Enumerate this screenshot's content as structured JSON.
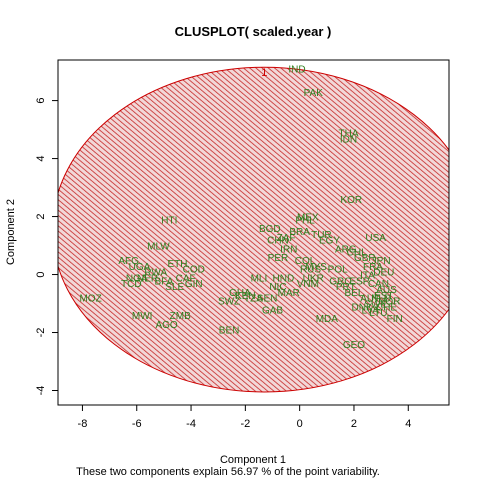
{
  "chart_data": {
    "type": "scatter",
    "title": "CLUSPLOT( scaled.year )",
    "xlabel": "Component 1",
    "ylabel": "Component 2",
    "subtitle": "These two components explain 56.97 % of the point variability.",
    "xlim": [
      -8.9,
      5.5
    ],
    "ylim": [
      -4.5,
      7.4
    ],
    "xticks": [
      -8,
      -6,
      -4,
      -2,
      0,
      2,
      4
    ],
    "yticks": [
      -4,
      -2,
      0,
      2,
      4,
      6
    ],
    "cluster_label": "1",
    "cluster_ellipse": {
      "center": [
        -1.3,
        1.55
      ],
      "semi_axis_x": 7.8,
      "semi_axis_y": 5.6,
      "fill": "hatched",
      "color": "#cc0000"
    },
    "point_color": "#2e7d1e",
    "points": [
      {
        "label": "IND",
        "x": -0.1,
        "y": 7.1
      },
      {
        "label": "PAK",
        "x": 0.5,
        "y": 6.3
      },
      {
        "label": "THA",
        "x": 1.8,
        "y": 4.9
      },
      {
        "label": "IDN",
        "x": 1.8,
        "y": 4.7
      },
      {
        "label": "KOR",
        "x": 1.9,
        "y": 2.6
      },
      {
        "label": "PHL",
        "x": 0.2,
        "y": 1.9
      },
      {
        "label": "MEX",
        "x": 0.3,
        "y": 2.0
      },
      {
        "label": "BGD",
        "x": -1.1,
        "y": 1.6
      },
      {
        "label": "BRA",
        "x": 0.0,
        "y": 1.5
      },
      {
        "label": "TUR",
        "x": 0.8,
        "y": 1.4
      },
      {
        "label": "EGY",
        "x": 1.1,
        "y": 1.2
      },
      {
        "label": "ZAF",
        "x": -0.5,
        "y": 1.3
      },
      {
        "label": "CHN",
        "x": -0.8,
        "y": 1.2
      },
      {
        "label": "IRN",
        "x": -0.4,
        "y": 0.9
      },
      {
        "label": "PER",
        "x": -0.8,
        "y": 0.6
      },
      {
        "label": "COL",
        "x": 0.2,
        "y": 0.5
      },
      {
        "label": "ARG",
        "x": 1.7,
        "y": 0.9
      },
      {
        "label": "CHL",
        "x": 2.1,
        "y": 0.8
      },
      {
        "label": "USA",
        "x": 2.8,
        "y": 1.3
      },
      {
        "label": "JPN",
        "x": 3.0,
        "y": 0.5
      },
      {
        "label": "GBR",
        "x": 2.4,
        "y": 0.6
      },
      {
        "label": "FRA",
        "x": 2.7,
        "y": 0.3
      },
      {
        "label": "DEU",
        "x": 3.1,
        "y": 0.1
      },
      {
        "label": "ITA",
        "x": 2.5,
        "y": 0.0
      },
      {
        "label": "ESP",
        "x": 2.2,
        "y": -0.2
      },
      {
        "label": "CAN",
        "x": 2.9,
        "y": -0.3
      },
      {
        "label": "AUS",
        "x": 3.2,
        "y": -0.5
      },
      {
        "label": "NLD",
        "x": 3.0,
        "y": -0.8
      },
      {
        "label": "SWE",
        "x": 2.8,
        "y": -1.0
      },
      {
        "label": "CHE",
        "x": 3.2,
        "y": -1.1
      },
      {
        "label": "AUT",
        "x": 2.6,
        "y": -0.8
      },
      {
        "label": "BEL",
        "x": 2.0,
        "y": -0.6
      },
      {
        "label": "DNK",
        "x": 2.3,
        "y": -1.1
      },
      {
        "label": "NOR",
        "x": 3.3,
        "y": -0.9
      },
      {
        "label": "FIN",
        "x": 3.5,
        "y": -1.5
      },
      {
        "label": "GRC",
        "x": 1.5,
        "y": -0.2
      },
      {
        "label": "PRT",
        "x": 1.7,
        "y": -0.4
      },
      {
        "label": "POL",
        "x": 1.4,
        "y": 0.2
      },
      {
        "label": "RUS",
        "x": 0.4,
        "y": 0.2
      },
      {
        "label": "UKR",
        "x": 0.5,
        "y": -0.1
      },
      {
        "label": "MYS",
        "x": 0.6,
        "y": 0.3
      },
      {
        "label": "VNM",
        "x": 0.3,
        "y": -0.3
      },
      {
        "label": "HND",
        "x": -0.6,
        "y": -0.1
      },
      {
        "label": "MLI",
        "x": -1.5,
        "y": -0.1
      },
      {
        "label": "NIC",
        "x": -0.8,
        "y": -0.4
      },
      {
        "label": "MAR",
        "x": -0.4,
        "y": -0.6
      },
      {
        "label": "SEN",
        "x": -1.2,
        "y": -0.8
      },
      {
        "label": "GAB",
        "x": -1.0,
        "y": -1.2
      },
      {
        "label": "GHA",
        "x": -2.2,
        "y": -0.6
      },
      {
        "label": "KEN",
        "x": -2.0,
        "y": -0.7
      },
      {
        "label": "TZA",
        "x": -1.7,
        "y": -0.8
      },
      {
        "label": "SWZ",
        "x": -2.6,
        "y": -0.9
      },
      {
        "label": "BEN",
        "x": -2.6,
        "y": -1.9
      },
      {
        "label": "HTI",
        "x": -4.8,
        "y": 1.9
      },
      {
        "label": "MLW",
        "x": -5.2,
        "y": 1.0
      },
      {
        "label": "AFG",
        "x": -6.3,
        "y": 0.5
      },
      {
        "label": "ETH",
        "x": -4.5,
        "y": 0.4
      },
      {
        "label": "COD",
        "x": -3.9,
        "y": 0.2
      },
      {
        "label": "UGA",
        "x": -5.9,
        "y": 0.3
      },
      {
        "label": "RWA",
        "x": -5.3,
        "y": 0.1
      },
      {
        "label": "NGA",
        "x": -6.0,
        "y": -0.1
      },
      {
        "label": "MOZ",
        "x": -7.7,
        "y": -0.8
      },
      {
        "label": "TCD",
        "x": -6.2,
        "y": -0.3
      },
      {
        "label": "NER",
        "x": -5.6,
        "y": -0.1
      },
      {
        "label": "BFA",
        "x": -5.0,
        "y": -0.2
      },
      {
        "label": "CAF",
        "x": -4.2,
        "y": -0.1
      },
      {
        "label": "GIN",
        "x": -3.9,
        "y": -0.3
      },
      {
        "label": "SLE",
        "x": -4.6,
        "y": -0.4
      },
      {
        "label": "MWI",
        "x": -5.8,
        "y": -1.4
      },
      {
        "label": "ZMB",
        "x": -4.4,
        "y": -1.4
      },
      {
        "label": "AGO",
        "x": -4.9,
        "y": -1.7
      },
      {
        "label": "GEO",
        "x": 2.0,
        "y": -2.4
      },
      {
        "label": "MDA",
        "x": 1.0,
        "y": -1.5
      },
      {
        "label": "LVA",
        "x": 2.6,
        "y": -1.2
      },
      {
        "label": "LTU",
        "x": 2.9,
        "y": -1.3
      },
      {
        "label": "EST",
        "x": 3.1,
        "y": -0.7
      }
    ]
  }
}
